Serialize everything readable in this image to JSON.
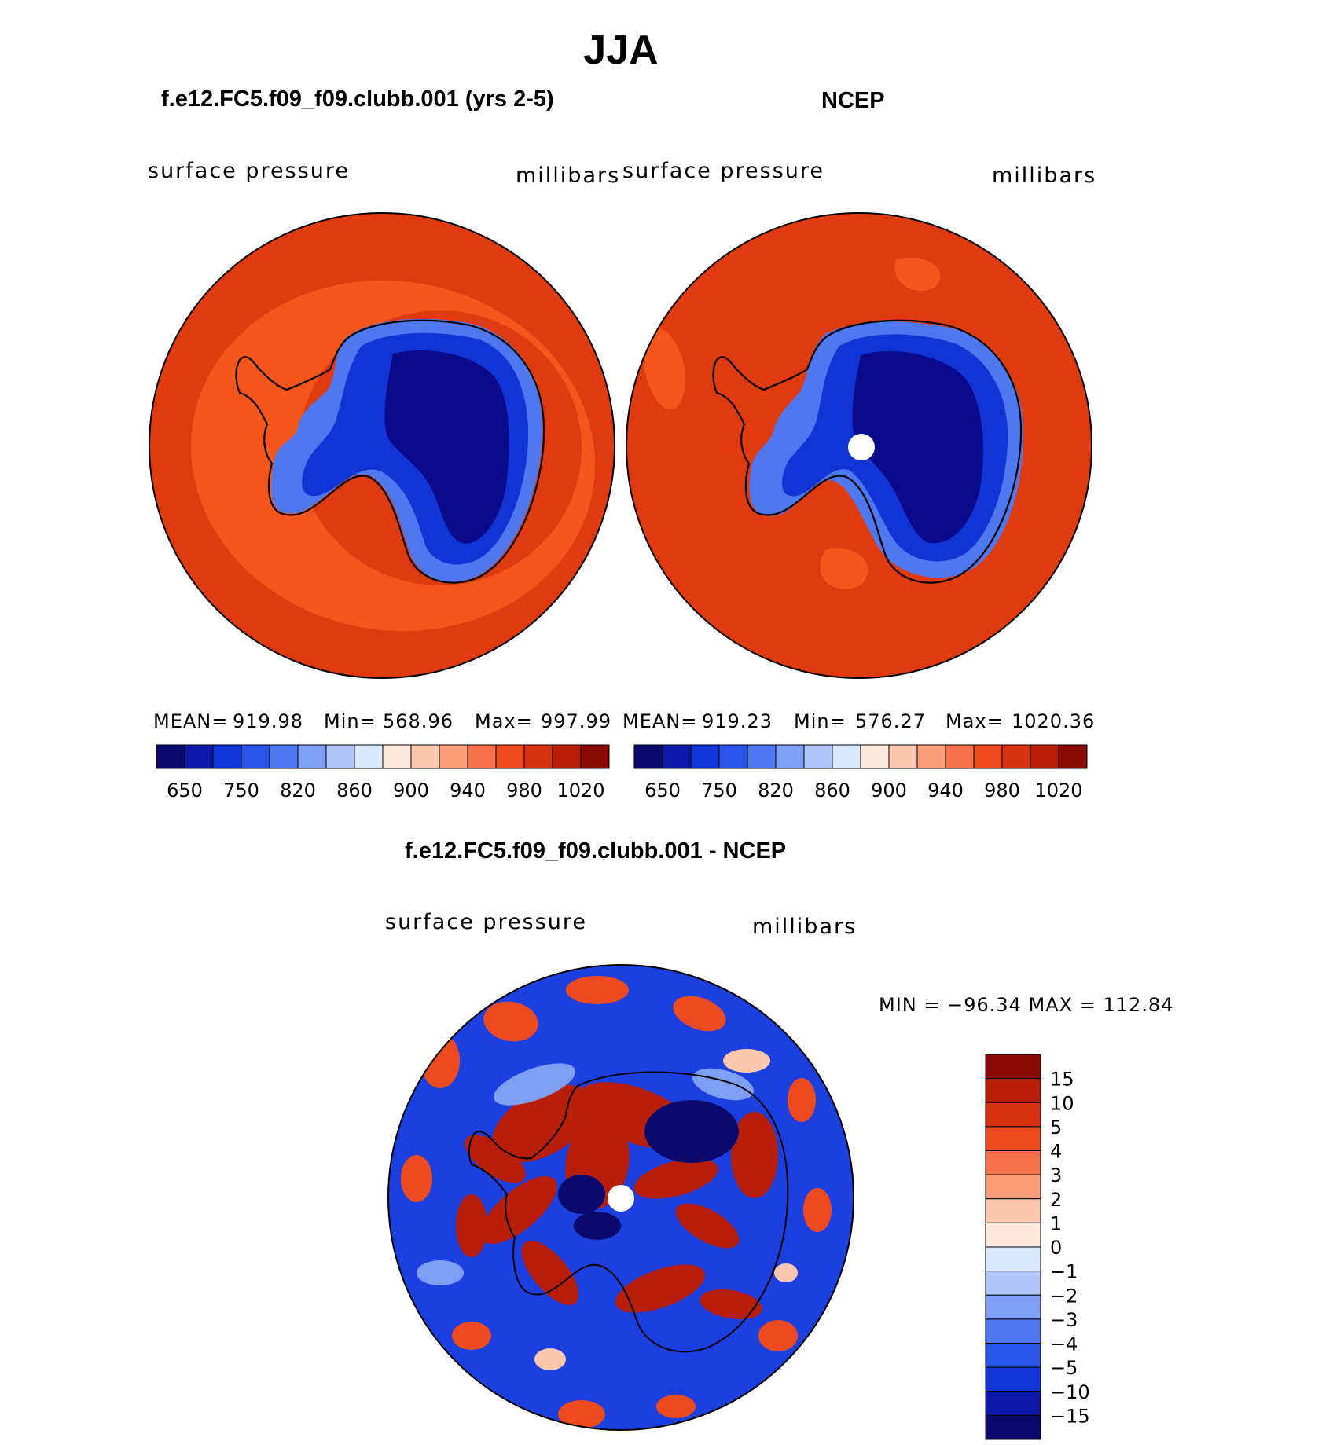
{
  "page": {
    "season": "JJA"
  },
  "panels": [
    {
      "id": "model",
      "title": "f.e12.FC5.f09_f09.clubb.001 (yrs 2-5)",
      "variable": "surface pressure",
      "units": "millibars",
      "stats": {
        "mean_label": "MEAN=",
        "mean": "919.98",
        "min_label": "Min=",
        "min": "568.96",
        "max_label": "Max=",
        "max": "997.99"
      }
    },
    {
      "id": "obs",
      "title": "NCEP",
      "variable": "surface pressure",
      "units": "millibars",
      "stats": {
        "mean_label": "MEAN=",
        "mean": "919.23",
        "min_label": "Min=",
        "min": "576.27",
        "max_label": "Max=",
        "max": "1020.36"
      }
    },
    {
      "id": "diff",
      "title": "f.e12.FC5.f09_f09.clubb.001 - NCEP",
      "variable": "surface pressure",
      "units": "millibars",
      "minmax": "MIN = −96.34 MAX = 112.84"
    }
  ],
  "colorbars": {
    "absolute": {
      "tick_labels": [
        "650",
        "750",
        "820",
        "860",
        "900",
        "940",
        "980",
        "1020"
      ],
      "colors": [
        "#0a0a6e",
        "#0d1aa8",
        "#1034d6",
        "#2a55e8",
        "#4f78f0",
        "#7f9ff5",
        "#b0c6fa",
        "#dbe9fc",
        "#fde9dc",
        "#fcc8b0",
        "#fa9e7a",
        "#f5724a",
        "#ee4a20",
        "#d83210",
        "#b81e08",
        "#8a0a04"
      ]
    },
    "difference": {
      "tick_labels": [
        "15",
        "10",
        "5",
        "4",
        "3",
        "2",
        "1",
        "0",
        "−1",
        "−2",
        "−3",
        "−4",
        "−5",
        "−10",
        "−15"
      ],
      "colors": [
        "#8a0a04",
        "#b81e08",
        "#d83210",
        "#ee4a20",
        "#f5724a",
        "#fa9e7a",
        "#fcc8b0",
        "#fde9dc",
        "#dbe9fc",
        "#b0c6fa",
        "#7f9ff5",
        "#4f78f0",
        "#2a55e8",
        "#1034d6",
        "#0d1aa8",
        "#0a0a6e"
      ]
    }
  },
  "map_colors": {
    "ocean_model": "#e03a10",
    "ocean_obs": "#e03a10",
    "ocean_band": "#f5561c",
    "ice_deep": "#0a0a8a",
    "ice_mid": "#1034d6",
    "ice_edge": "#4f78f0",
    "coast": "#000000",
    "diff_bg": "#1c3fe0"
  }
}
